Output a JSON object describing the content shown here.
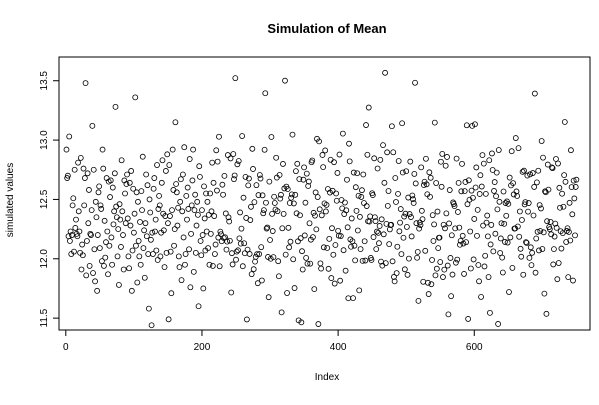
{
  "chart_data": {
    "type": "scatter",
    "title": "Simulation of Mean",
    "xlabel": "Index",
    "ylabel": "simulated values",
    "xlim": [
      -10,
      770
    ],
    "ylim": [
      11.4,
      13.7
    ],
    "x_ticks": [
      0,
      200,
      400,
      600
    ],
    "y_ticks": [
      11.5,
      12.0,
      12.5,
      13.0,
      13.5
    ],
    "grid": false,
    "legend": "none",
    "marker": "open-circle",
    "x_start": 1,
    "values": [
      12.92,
      12.68,
      12.7,
      12.19,
      13.03,
      12.15,
      12.23,
      12.04,
      12.2,
      12.45,
      12.51,
      12.06,
      12.75,
      12.26,
      12.33,
      12.21,
      12.19,
      12.81,
      12.4,
      12.23,
      12.05,
      12.85,
      11.91,
      12.12,
      12.03,
      12.76,
      12.45,
      12.68,
      13.48,
      11.86,
      12.15,
      12.72,
      12.3,
      12.58,
      11.94,
      12.21,
      12.2,
      12.41,
      13.12,
      11.88,
      12.75,
      12.08,
      11.81,
      12.48,
      12.35,
      11.73,
      12.2,
      12.56,
      12.61,
      12.09,
      12.45,
      12.42,
      11.98,
      12.92,
      12.76,
      11.94,
      12.32,
      12.01,
      12.14,
      12.68,
      12.23,
      11.87,
      12.65,
      12.11,
      12.52,
      12.66,
      12.18,
      11.95,
      12.6,
      12.29,
      12.4,
      12.72,
      13.28,
      12.44,
      12.35,
      12.02,
      12.25,
      11.78,
      12.46,
      12.33,
      12.1,
      12.83,
      12.4,
      12.2,
      11.91,
      12.66,
      12.55,
      12.3,
      12.63,
      12.71,
      12.34,
      12.02,
      11.92,
      12.64,
      12.28,
      12.74,
      11.73,
      12.07,
      12.59,
      12.22,
      12.38,
      13.36,
      12.11,
      12.56,
      11.8,
      12.48,
      12.15,
      12.02,
      12.31,
      11.95,
      12.57,
      12.41,
      12.86,
      12.09,
      12.24,
      11.84,
      12.3,
      12.71,
      12.19,
      12.62,
      12.04,
      11.58,
      12.5,
      12.39,
      12.16,
      11.44,
      12.22,
      12.04,
      12.59,
      12.68,
      12.23,
      12.33,
      12.07,
      12.79,
      11.99,
      12.42,
      12.53,
      12.45,
      12.02,
      12.22,
      12.64,
      12.83,
      12.38,
      12.24,
      11.93,
      12.36,
      12.74,
      12.05,
      12.88,
      12.3,
      11.49,
      12.79,
      12.36,
      12.06,
      11.71,
      12.41,
      12.92,
      12.58,
      12.11,
      12.25,
      13.15,
      12.63,
      12.56,
      12.28,
      12.43,
      12.02,
      11.93,
      12.48,
      12.67,
      11.82,
      12.4,
      12.71,
      12.18,
      12.94,
      11.95,
      12.04,
      12.53,
      12.33,
      12.6,
      12.42,
      12.08,
      12.84,
      11.76,
      12.21,
      12.45,
      12.66,
      12.92,
      11.89,
      12.41,
      12.54,
      12.05,
      12.28,
      12.48,
      12.37,
      11.6,
      12.78,
      12.69,
      12.15,
      12.03,
      12.41,
      12.2,
      11.75,
      12.61,
      12.34,
      12.07,
      12.55,
      12.23,
      12.48,
      12.09,
      12.37,
      11.95,
      12.55,
      12.21,
      12.4,
      12.81,
      11.94,
      12.64,
      12.36,
      12.04,
      12.12
    ],
    "values_note_omitted": false
  }
}
